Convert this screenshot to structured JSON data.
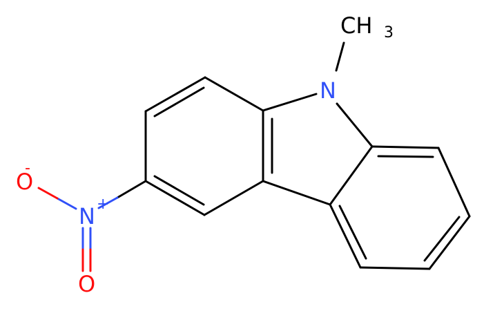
{
  "molecule": {
    "methyl": {
      "label": "CH",
      "subscript": "3"
    },
    "ring_nitrogen": "N",
    "nitro_nitrogen": {
      "label": "N",
      "charge": "+"
    },
    "oxygen_top": {
      "label": "O",
      "charge": "-"
    },
    "oxygen_bottom": "O"
  }
}
